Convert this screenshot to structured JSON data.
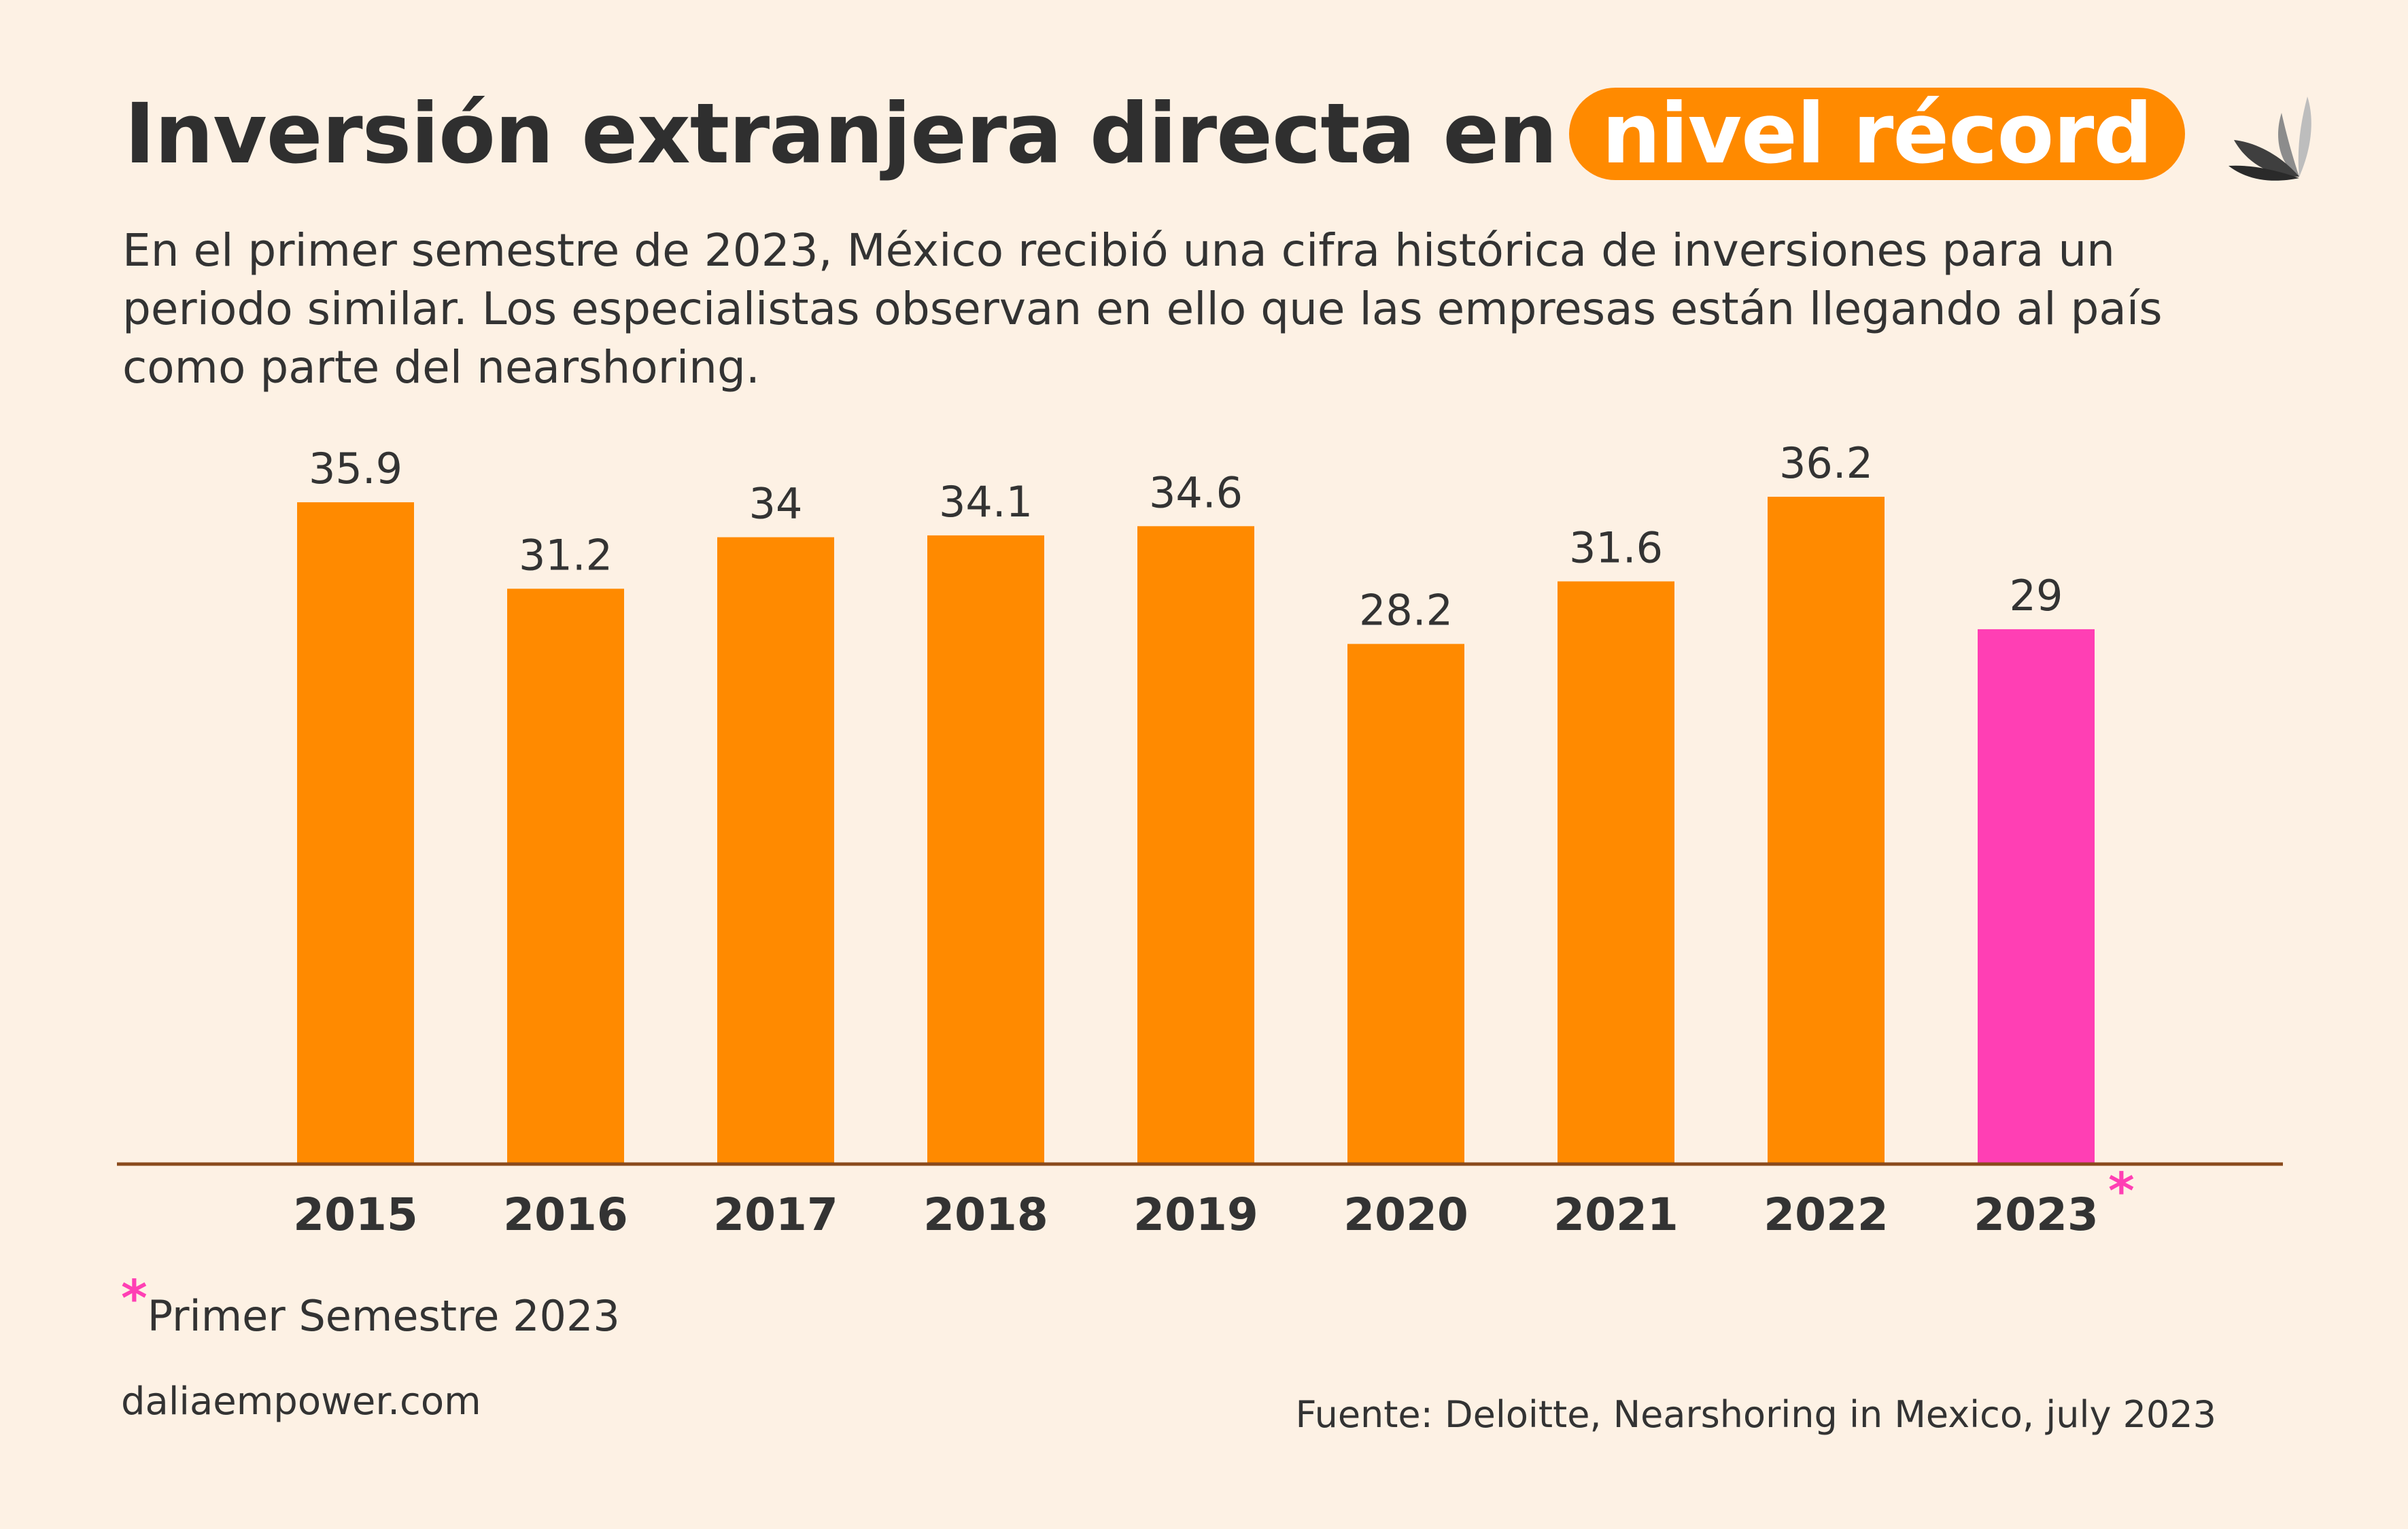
{
  "header": {
    "title_main": "Inversión extranjera directa en",
    "title_highlight": "nivel récord",
    "subtitle": "En el primer semestre de 2023, México recibió una cifra histórica de inversiones para un periodo similar. Los especialistas observan en ello que las empresas están llegando al país como parte del nearshoring."
  },
  "colors": {
    "background": "#fdf1e4",
    "bar": "#ff8a00",
    "bar_highlight": "#ff3fb4",
    "axis": "#8a4a1c",
    "text": "#333333"
  },
  "chart_data": {
    "type": "bar",
    "categories": [
      "2015",
      "2016",
      "2017",
      "2018",
      "2019",
      "2020",
      "2021",
      "2022",
      "2023"
    ],
    "values": [
      35.9,
      31.2,
      34,
      34.1,
      34.6,
      28.2,
      31.6,
      36.2,
      29
    ],
    "value_labels": [
      "35.9",
      "31.2",
      "34",
      "34.1",
      "34.6",
      "28.2",
      "31.6",
      "36.2",
      "29"
    ],
    "highlight_index": 8,
    "marker": "*",
    "ylim": [
      0,
      36.2
    ],
    "grid": false
  },
  "footnote": {
    "marker": "*",
    "text": "Primer Semestre 2023"
  },
  "website": "daliaempower.com",
  "source": "Fuente: Deloitte, Nearshoring in Mexico, july 2023",
  "logo_icon": "leaf-logo-icon"
}
